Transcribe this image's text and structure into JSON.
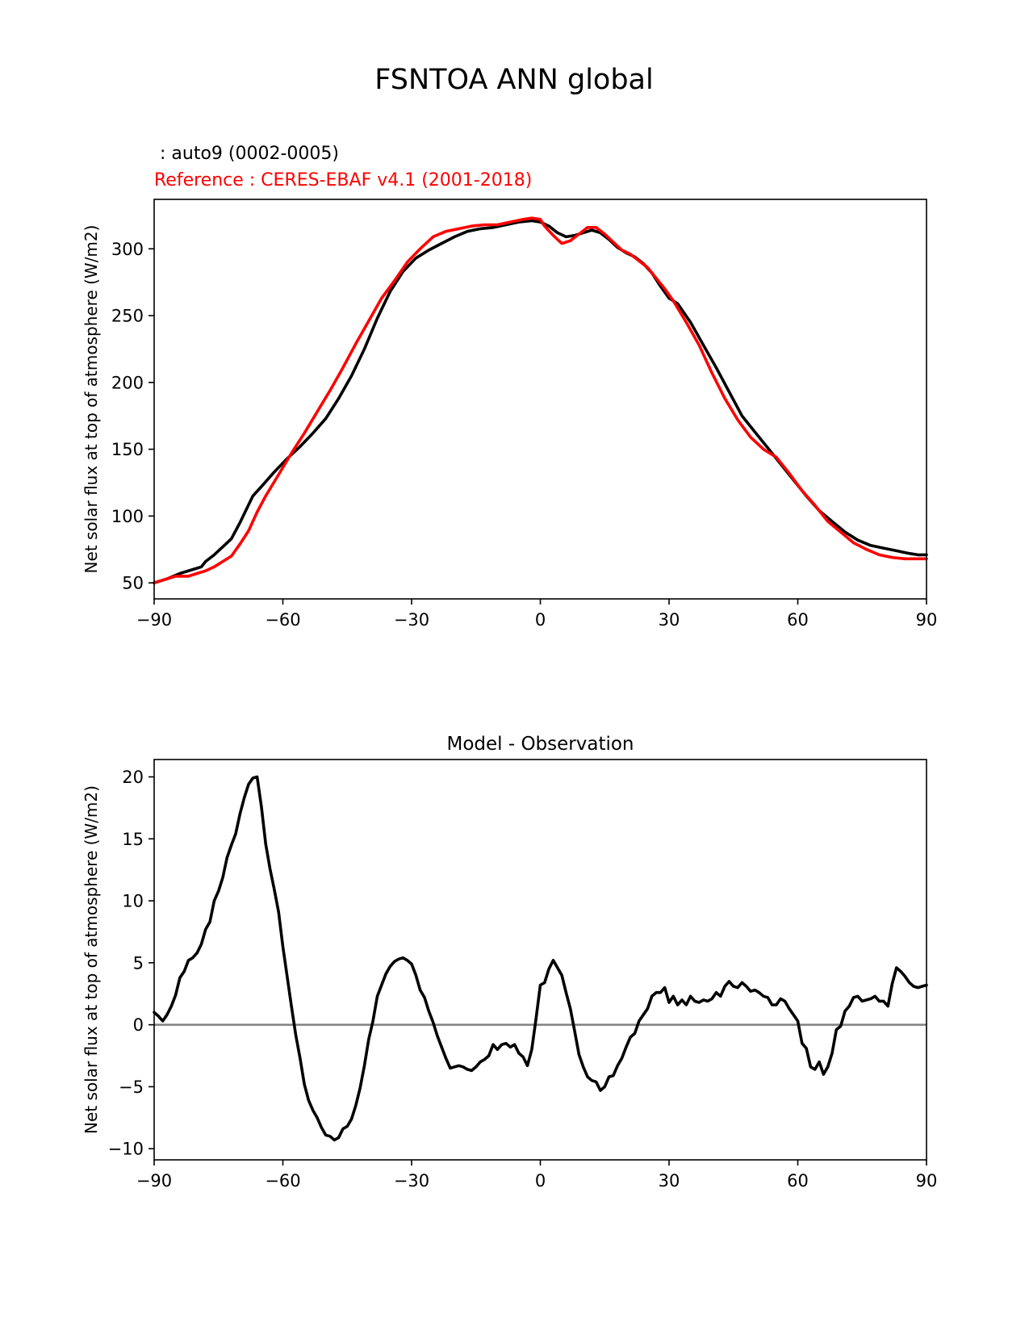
{
  "figure": {
    "title": "FSNTOA ANN global",
    "test_label": " : auto9 (0002-0005)",
    "reference_label": "Reference : CERES-EBAF v4.1 (2001-2018)"
  },
  "colors": {
    "test": "#000000",
    "reference": "#ff0000",
    "zero_line": "#808080",
    "axes": "#000000"
  },
  "chart_data": [
    {
      "type": "line",
      "title": "",
      "xlabel": "",
      "ylabel": "Net solar flux at top of atmosphere (W/m2)",
      "xlim": [
        -90,
        90
      ],
      "ylim": [
        38,
        337
      ],
      "xticks": [
        -90,
        -60,
        -30,
        0,
        30,
        60,
        90
      ],
      "xtick_labels": [
        "−90",
        "−60",
        "−30",
        "0",
        "30",
        "60",
        "90"
      ],
      "yticks": [
        50,
        100,
        150,
        200,
        250,
        300
      ],
      "ytick_labels": [
        "50",
        "100",
        "150",
        "200",
        "250",
        "300"
      ],
      "grid": false,
      "series": [
        {
          "name": "auto9 (0002-0005)",
          "color": "#000000",
          "x": [
            -90,
            -87,
            -84,
            -81,
            -79,
            -78,
            -76,
            -74,
            -72,
            -70,
            -67,
            -65,
            -62,
            -59,
            -56,
            -53,
            -50,
            -47,
            -44,
            -41,
            -38,
            -35,
            -32,
            -29,
            -26,
            -23,
            -20,
            -17,
            -14,
            -11,
            -8,
            -5,
            -2,
            0,
            2,
            4,
            6,
            8,
            10,
            12,
            14,
            16,
            18,
            20,
            22,
            24,
            26,
            28,
            30,
            32,
            35,
            38,
            41,
            44,
            47,
            50,
            53,
            56,
            59,
            62,
            65,
            68,
            71,
            74,
            77,
            80,
            83,
            86,
            88,
            90
          ],
          "y": [
            50,
            53,
            57,
            60,
            62,
            66,
            71,
            77,
            83,
            95,
            115,
            122,
            133,
            143,
            152,
            162,
            173,
            188,
            205,
            225,
            248,
            268,
            283,
            293,
            299,
            304,
            309,
            313,
            315,
            316,
            318,
            320,
            321,
            320,
            317,
            312,
            309,
            310,
            312,
            314,
            312,
            307,
            301,
            297,
            294,
            289,
            282,
            272,
            263,
            259,
            245,
            228,
            211,
            193,
            175,
            163,
            151,
            139,
            127,
            115,
            104,
            96,
            88,
            82,
            78,
            76,
            74,
            72,
            71,
            71
          ]
        },
        {
          "name": "CERES-EBAF v4.1 (2001-2018)",
          "color": "#ff0000",
          "x": [
            -90,
            -88,
            -85,
            -82,
            -80,
            -78,
            -76,
            -74,
            -72,
            -70,
            -68,
            -66,
            -64,
            -61,
            -58,
            -55,
            -52,
            -49,
            -46,
            -43,
            -40,
            -37,
            -34,
            -31,
            -28,
            -25,
            -22,
            -19,
            -16,
            -13,
            -10,
            -7,
            -4,
            -2,
            0,
            1,
            3,
            5,
            7,
            9,
            11,
            13,
            15,
            17,
            19,
            21,
            23,
            25,
            27,
            29,
            31,
            34,
            37,
            40,
            43,
            46,
            49,
            52,
            55,
            58,
            61,
            64,
            67,
            70,
            73,
            76,
            79,
            82,
            85,
            88,
            90
          ],
          "y": [
            50,
            52,
            55,
            55,
            57,
            59,
            62,
            66,
            70,
            79,
            89,
            103,
            115,
            131,
            147,
            162,
            178,
            194,
            211,
            229,
            246,
            263,
            276,
            290,
            300,
            309,
            313,
            315,
            317,
            318,
            318,
            320,
            322,
            323,
            322,
            317,
            310,
            304,
            306,
            311,
            316,
            316,
            311,
            305,
            299,
            296,
            291,
            286,
            278,
            270,
            261,
            245,
            228,
            207,
            188,
            172,
            159,
            150,
            144,
            132,
            119,
            108,
            96,
            88,
            80,
            75,
            71,
            69,
            68,
            68,
            68
          ]
        }
      ]
    },
    {
      "type": "line",
      "title": "Model - Observation",
      "xlabel": "",
      "ylabel": "Net solar flux at top of atmosphere (W/m2)",
      "xlim": [
        -90,
        90
      ],
      "ylim": [
        -10.9,
        21.4
      ],
      "xticks": [
        -90,
        -60,
        -30,
        0,
        30,
        60,
        90
      ],
      "xtick_labels": [
        "−90",
        "−60",
        "−30",
        "0",
        "30",
        "60",
        "90"
      ],
      "yticks": [
        -10,
        -5,
        0,
        5,
        10,
        15,
        20
      ],
      "ytick_labels": [
        "−10",
        "−5",
        "0",
        "5",
        "10",
        "15",
        "20"
      ],
      "zero_line": 0,
      "grid": false,
      "series": [
        {
          "name": "",
          "color": "#000000",
          "x": [
            -90,
            -89,
            -88,
            -87,
            -86,
            -85,
            -84,
            -83,
            -82,
            -81,
            -80,
            -79,
            -78,
            -77,
            -76,
            -75,
            -74,
            -73,
            -72,
            -71,
            -70,
            -69,
            -68,
            -67,
            -66,
            -65,
            -64,
            -63,
            -62,
            -61,
            -60,
            -59,
            -58,
            -57,
            -56,
            -55,
            -54,
            -53,
            -52,
            -51,
            -50,
            -49,
            -48,
            -47,
            -46,
            -45,
            -44,
            -43,
            -42,
            -41,
            -40,
            -39,
            -38,
            -37,
            -36,
            -35,
            -34,
            -33,
            -32,
            -31,
            -30,
            -29,
            -28,
            -27,
            -26,
            -25,
            -24,
            -23,
            -22,
            -21,
            -20,
            -19,
            -18,
            -17,
            -16,
            -15,
            -14,
            -13,
            -12,
            -11,
            -10,
            -9,
            -8,
            -7,
            -6,
            -5,
            -4,
            -3,
            -2,
            -1,
            0,
            1,
            2,
            3,
            4,
            5,
            6,
            7,
            8,
            9,
            10,
            11,
            12,
            13,
            14,
            15,
            16,
            17,
            18,
            19,
            20,
            21,
            22,
            23,
            24,
            25,
            26,
            27,
            28,
            29,
            30,
            31,
            32,
            33,
            34,
            35,
            36,
            37,
            38,
            39,
            40,
            41,
            42,
            43,
            44,
            45,
            46,
            47,
            48,
            49,
            50,
            51,
            52,
            53,
            54,
            55,
            56,
            57,
            58,
            59,
            60,
            61,
            62,
            63,
            64,
            65,
            66,
            67,
            68,
            69,
            70,
            71,
            72,
            73,
            74,
            75,
            76,
            77,
            78,
            79,
            80,
            81,
            82,
            83,
            84,
            85,
            86,
            87,
            88,
            89,
            90
          ],
          "y": [
            1.0,
            0.7,
            0.3,
            0.8,
            1.5,
            2.4,
            3.8,
            4.3,
            5.2,
            5.4,
            5.8,
            6.5,
            7.7,
            8.3,
            10.0,
            10.8,
            11.9,
            13.5,
            14.5,
            15.4,
            17.0,
            18.3,
            19.4,
            19.9,
            20.0,
            17.6,
            14.6,
            12.6,
            10.9,
            9.1,
            6.3,
            3.9,
            1.5,
            -0.8,
            -2.7,
            -4.8,
            -6.1,
            -6.9,
            -7.5,
            -8.3,
            -8.9,
            -9.0,
            -9.3,
            -9.1,
            -8.4,
            -8.2,
            -7.6,
            -6.5,
            -5.1,
            -3.3,
            -1.2,
            0.3,
            2.3,
            3.2,
            4.1,
            4.7,
            5.1,
            5.3,
            5.4,
            5.2,
            4.9,
            4.0,
            2.8,
            2.2,
            1.1,
            0.2,
            -0.9,
            -1.8,
            -2.7,
            -3.5,
            -3.4,
            -3.3,
            -3.4,
            -3.6,
            -3.7,
            -3.4,
            -3.0,
            -2.8,
            -2.5,
            -1.6,
            -2.0,
            -1.6,
            -1.5,
            -1.8,
            -1.6,
            -2.3,
            -2.6,
            -3.3,
            -2.0,
            0.5,
            3.2,
            3.4,
            4.5,
            5.2,
            4.6,
            4.0,
            2.6,
            1.3,
            -0.5,
            -2.4,
            -3.4,
            -4.2,
            -4.5,
            -4.6,
            -5.3,
            -5.0,
            -4.2,
            -4.1,
            -3.3,
            -2.7,
            -1.8,
            -1.0,
            -0.7,
            0.3,
            0.8,
            1.3,
            2.3,
            2.6,
            2.6,
            3.0,
            1.8,
            2.3,
            1.6,
            2.0,
            1.6,
            2.3,
            1.9,
            1.8,
            2.0,
            1.9,
            2.1,
            2.6,
            2.3,
            3.1,
            3.5,
            3.1,
            3.0,
            3.4,
            3.1,
            2.7,
            2.8,
            2.6,
            2.3,
            2.2,
            1.6,
            1.6,
            2.1,
            1.9,
            1.3,
            0.8,
            0.3,
            -1.5,
            -1.9,
            -3.4,
            -3.6,
            -3.0,
            -4.0,
            -3.4,
            -2.3,
            -0.4,
            -0.1,
            1.1,
            1.5,
            2.2,
            2.3,
            1.9,
            2.0,
            2.1,
            2.3,
            1.9,
            1.9,
            1.5,
            3.3,
            4.6,
            4.3,
            3.9,
            3.4,
            3.1,
            3.0,
            3.1,
            3.2
          ]
        }
      ]
    }
  ]
}
